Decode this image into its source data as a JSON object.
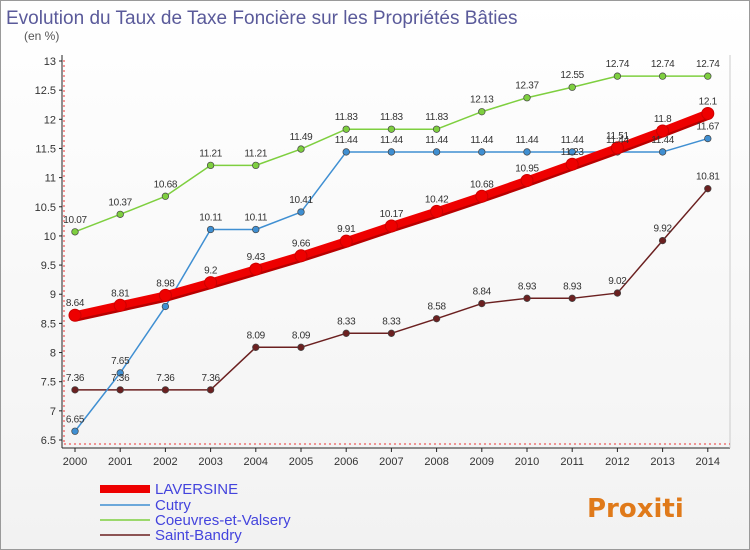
{
  "chart_data": {
    "type": "line",
    "title": "Evolution du Taux de Taxe Foncière sur les Propriétés Bâties",
    "unit_label": "(en %)",
    "x": [
      "2000",
      "2001",
      "2002",
      "2003",
      "2004",
      "2005",
      "2006",
      "2007",
      "2008",
      "2009",
      "2010",
      "2011",
      "2012",
      "2013",
      "2014"
    ],
    "y_ticks": [
      "6.5",
      "7",
      "7.5",
      "8",
      "8.5",
      "9",
      "9.5",
      "10",
      "10.5",
      "11",
      "11.5",
      "12",
      "12.5",
      "13"
    ],
    "ylim": [
      6.5,
      13
    ],
    "grid": false,
    "legend_position": "bottom-left",
    "series": [
      {
        "name": "LAVERSINE",
        "color": "#ee0000",
        "values": [
          8.64,
          8.81,
          8.98,
          9.2,
          9.43,
          9.66,
          9.91,
          10.17,
          10.42,
          10.68,
          10.95,
          11.23,
          11.51,
          11.8,
          12.1
        ],
        "labels": [
          "8.64",
          "8.81",
          "8.98",
          "9.2",
          "9.43",
          "9.66",
          "9.91",
          "10.17",
          "10.42",
          "10.68",
          "10.95",
          "11.23",
          "11.51",
          "11.8",
          "12.1"
        ]
      },
      {
        "name": "Cutry",
        "color": "#3f8fd2",
        "values": [
          6.65,
          7.65,
          8.79,
          10.11,
          10.11,
          10.41,
          11.44,
          11.44,
          11.44,
          11.44,
          11.44,
          11.44,
          11.44,
          11.44,
          11.67
        ],
        "labels": [
          "6.65",
          "7.65",
          "",
          "10.11",
          "10.11",
          "10.41",
          "11.44",
          "11.44",
          "11.44",
          "11.44",
          "11.44",
          "11.44",
          "11.44",
          "11.44",
          "11.67"
        ]
      },
      {
        "name": "Coeuvres-et-Valsery",
        "color": "#7ecf3f",
        "values": [
          10.07,
          10.37,
          10.68,
          11.21,
          11.21,
          11.49,
          11.83,
          11.83,
          11.83,
          12.13,
          12.37,
          12.55,
          12.74,
          12.74,
          12.74
        ],
        "labels": [
          "10.07",
          "10.37",
          "10.68",
          "11.21",
          "11.21",
          "11.49",
          "11.83",
          "11.83",
          "11.83",
          "12.13",
          "12.37",
          "12.55",
          "12.74",
          "12.74",
          "12.74"
        ]
      },
      {
        "name": "Saint-Bandry",
        "color": "#6b2020",
        "values": [
          7.36,
          7.36,
          7.36,
          7.36,
          8.09,
          8.09,
          8.33,
          8.33,
          8.58,
          8.84,
          8.93,
          8.93,
          9.02,
          9.92,
          10.81
        ],
        "labels": [
          "7.36",
          "7.36",
          "7.36",
          "7.36",
          "8.09",
          "8.09",
          "8.33",
          "8.33",
          "8.58",
          "8.84",
          "8.93",
          "8.93",
          "9.02",
          "9.92",
          "10.81"
        ]
      }
    ]
  },
  "logo_text": "Proxiti"
}
